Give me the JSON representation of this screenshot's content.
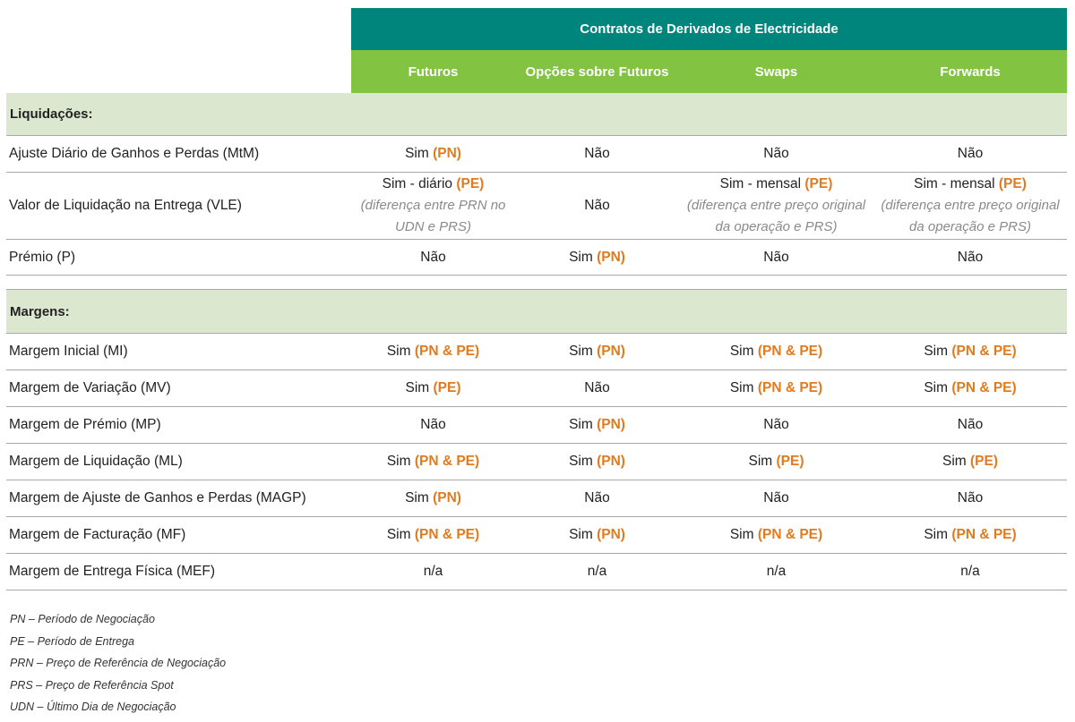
{
  "header": {
    "title": "Contratos de Derivados de Electricidade",
    "columns": [
      "Futuros",
      "Opções sobre Futuros",
      "Swaps",
      "Forwards"
    ]
  },
  "sections": [
    {
      "title": "Liquidações:",
      "rows": [
        {
          "label": "Ajuste Diário de Ganhos e Perdas (MtM)",
          "cells": [
            {
              "text": "Sim",
              "tag": "(PN)"
            },
            {
              "text": "Não",
              "tag": ""
            },
            {
              "text": "Não",
              "tag": ""
            },
            {
              "text": "Não",
              "tag": ""
            }
          ]
        },
        {
          "label": "Valor de Liquidação na Entrega (VLE)",
          "cells": [
            {
              "text": "Sim - diário",
              "tag": "(PE)",
              "note1": "(diferença entre PRN no",
              "note2": "UDN e PRS)"
            },
            {
              "text": "Não",
              "tag": ""
            },
            {
              "text": "Sim - mensal",
              "tag": "(PE)",
              "note1": "(diferença entre preço original",
              "note2": "da operação e PRS)"
            },
            {
              "text": "Sim - mensal",
              "tag": "(PE)",
              "note1": "(diferença entre preço original",
              "note2": "da operação e PRS)"
            }
          ]
        },
        {
          "label": "Prémio (P)",
          "cells": [
            {
              "text": "Não",
              "tag": ""
            },
            {
              "text": "Sim",
              "tag": "(PN)"
            },
            {
              "text": "Não",
              "tag": ""
            },
            {
              "text": "Não",
              "tag": ""
            }
          ]
        }
      ]
    },
    {
      "title": "Margens:",
      "rows": [
        {
          "label": "Margem Inicial (MI)",
          "cells": [
            {
              "text": "Sim",
              "tag": "(PN & PE)"
            },
            {
              "text": "Sim",
              "tag": "(PN)"
            },
            {
              "text": "Sim",
              "tag": "(PN & PE)"
            },
            {
              "text": "Sim",
              "tag": "(PN & PE)"
            }
          ]
        },
        {
          "label": "Margem de Variação (MV)",
          "cells": [
            {
              "text": "Sim",
              "tag": "(PE)"
            },
            {
              "text": "Não",
              "tag": ""
            },
            {
              "text": "Sim",
              "tag": "(PN & PE)"
            },
            {
              "text": "Sim",
              "tag": "(PN & PE)"
            }
          ]
        },
        {
          "label": "Margem de Prémio (MP)",
          "cells": [
            {
              "text": "Não",
              "tag": ""
            },
            {
              "text": "Sim",
              "tag": "(PN)"
            },
            {
              "text": "Não",
              "tag": ""
            },
            {
              "text": "Não",
              "tag": ""
            }
          ]
        },
        {
          "label": "Margem de Liquidação (ML)",
          "cells": [
            {
              "text": "Sim",
              "tag": "(PN & PE)"
            },
            {
              "text": "Sim",
              "tag": "(PN)"
            },
            {
              "text": "Sim",
              "tag": "(PE)"
            },
            {
              "text": "Sim",
              "tag": "(PE)"
            }
          ]
        },
        {
          "label": "Margem de Ajuste de Ganhos e Perdas (MAGP)",
          "cells": [
            {
              "text": "Sim",
              "tag": "(PN)"
            },
            {
              "text": "Não",
              "tag": ""
            },
            {
              "text": "Não",
              "tag": ""
            },
            {
              "text": "Não",
              "tag": ""
            }
          ]
        },
        {
          "label": "Margem de Facturação (MF)",
          "cells": [
            {
              "text": "Sim",
              "tag": "(PN & PE)"
            },
            {
              "text": "Sim",
              "tag": "(PN)"
            },
            {
              "text": "Sim",
              "tag": "(PN & PE)"
            },
            {
              "text": "Sim",
              "tag": "(PN & PE)"
            }
          ]
        },
        {
          "label": "Margem de Entrega Física (MEF)",
          "cells": [
            {
              "text": "n/a",
              "tag": ""
            },
            {
              "text": "n/a",
              "tag": ""
            },
            {
              "text": "n/a",
              "tag": ""
            },
            {
              "text": "n/a",
              "tag": ""
            }
          ]
        }
      ]
    }
  ],
  "legend": [
    "PN – Período de Negociação",
    "PE – Período de Entrega",
    "PRN – Preço de Referência de Negociação",
    "PRS – Preço de Referência Spot",
    "UDN – Último Dia de Negociação"
  ],
  "colors": {
    "header_dark": "#00857c",
    "header_light": "#82c341",
    "section_bg": "#dbe8cf",
    "accent": "#e07b1f"
  }
}
